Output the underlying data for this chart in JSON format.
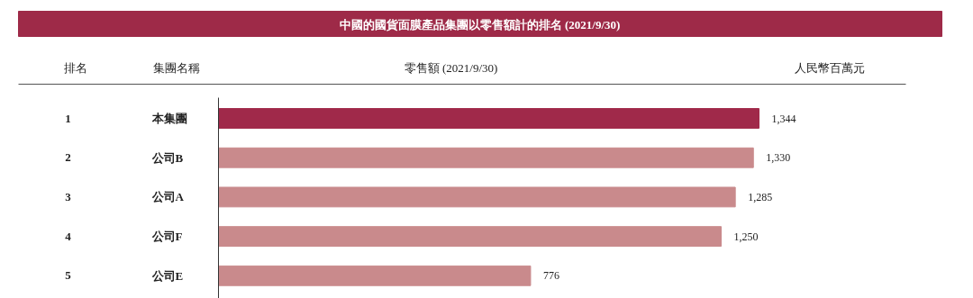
{
  "chart_data": {
    "type": "bar",
    "orientation": "horizontal",
    "title": "中國的國貨面膜產品集團以零售額計的排名 (2021/9/30)",
    "xlabel": "零售額 (2021/9/30)",
    "categories": [
      "本集團",
      "公司B",
      "公司A",
      "公司F",
      "公司E"
    ],
    "values": [
      1344,
      1330,
      1285,
      1250,
      776
    ],
    "colors": [
      "#a0294a",
      "#c98a8c",
      "#c98a8c",
      "#c98a8c",
      "#c98a8c"
    ],
    "value_labels": [
      "1,344",
      "1,330",
      "1,285",
      "1,250",
      "776"
    ],
    "annotations": [
      "排名",
      "集團名稱",
      "人民幣百萬元",
      "1",
      "2",
      "3",
      "4",
      "5"
    ]
  }
}
